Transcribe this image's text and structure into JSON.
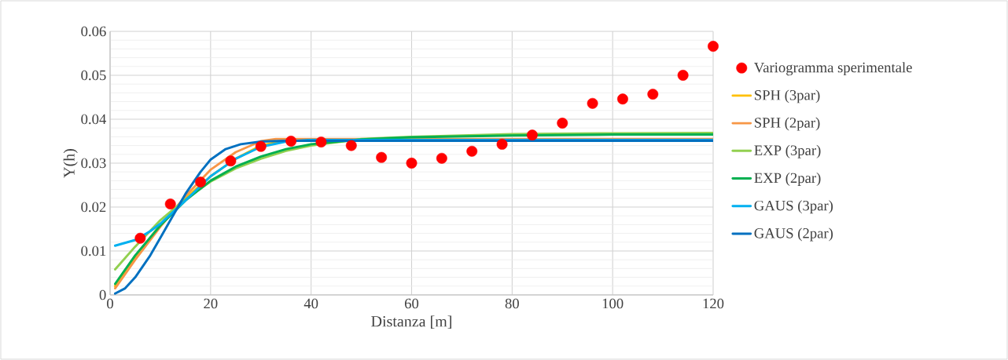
{
  "chart_data": {
    "type": "line",
    "xlabel": "Distanza [m]",
    "ylabel": "Υ(h)",
    "xlim": [
      0,
      120
    ],
    "xticks": [
      0,
      20,
      40,
      60,
      80,
      100,
      120
    ],
    "ylim": [
      0,
      0.06
    ],
    "yticks": [
      0,
      0.01,
      0.02,
      0.03,
      0.04,
      0.05,
      0.06
    ],
    "grid": true,
    "legend": "right",
    "series": [
      {
        "name": "Variogramma sperimentale",
        "type": "scatter",
        "marker": "circle",
        "color": "#ff0000",
        "x": [
          6,
          12,
          18,
          24,
          30,
          36,
          42,
          48,
          54,
          60,
          66,
          72,
          78,
          84,
          90,
          96,
          102,
          108,
          114,
          120
        ],
        "values": [
          0.0129,
          0.0207,
          0.0257,
          0.0305,
          0.0338,
          0.035,
          0.0348,
          0.034,
          0.0313,
          0.03,
          0.0311,
          0.0327,
          0.0343,
          0.0364,
          0.0391,
          0.0436,
          0.0446,
          0.0457,
          0.05,
          0.0566
        ]
      },
      {
        "name": "SPH (3par)",
        "color": "#ffc000",
        "x": [
          1,
          5,
          10,
          15,
          20,
          25,
          30,
          35
        ],
        "values": [
          0.002,
          0.0085,
          0.016,
          0.022,
          0.027,
          0.031,
          0.034,
          0.0353
        ]
      },
      {
        "name": "SPH (2par)",
        "color": "#f79646",
        "x": [
          1,
          5,
          10,
          15,
          20,
          25,
          30,
          33,
          120
        ],
        "values": [
          0.0015,
          0.008,
          0.0155,
          0.0225,
          0.0285,
          0.0325,
          0.035,
          0.0355,
          0.0355
        ]
      },
      {
        "name": "EXP (3par)",
        "color": "#92d050",
        "x": [
          1,
          5,
          10,
          15,
          20,
          25,
          30,
          35,
          40,
          50,
          60,
          80,
          100,
          120
        ],
        "values": [
          0.0058,
          0.011,
          0.017,
          0.0218,
          0.0258,
          0.0288,
          0.031,
          0.0328,
          0.034,
          0.0355,
          0.036,
          0.0366,
          0.0368,
          0.0369
        ]
      },
      {
        "name": "EXP (2par)",
        "color": "#00b050",
        "x": [
          1,
          5,
          10,
          15,
          20,
          25,
          30,
          35,
          40,
          50,
          60,
          80,
          100,
          120
        ],
        "values": [
          0.0025,
          0.009,
          0.0158,
          0.0215,
          0.026,
          0.0292,
          0.0315,
          0.0332,
          0.0343,
          0.0354,
          0.0359,
          0.0363,
          0.0365,
          0.0365
        ]
      },
      {
        "name": "GAUS (3par)",
        "color": "#00b0f0",
        "x": [
          1,
          5,
          8,
          10,
          15,
          20,
          25,
          30,
          35,
          40,
          120
        ],
        "values": [
          0.0112,
          0.0125,
          0.0145,
          0.0162,
          0.0215,
          0.027,
          0.031,
          0.0337,
          0.0349,
          0.0353,
          0.0353
        ]
      },
      {
        "name": "GAUS (2par)",
        "color": "#0070c0",
        "x": [
          1,
          3,
          5,
          8,
          10,
          12,
          15,
          18,
          20,
          23,
          26,
          30,
          35,
          120
        ],
        "values": [
          0.0003,
          0.0015,
          0.004,
          0.009,
          0.013,
          0.017,
          0.023,
          0.028,
          0.0308,
          0.0332,
          0.0343,
          0.0349,
          0.0351,
          0.0351
        ]
      }
    ]
  }
}
